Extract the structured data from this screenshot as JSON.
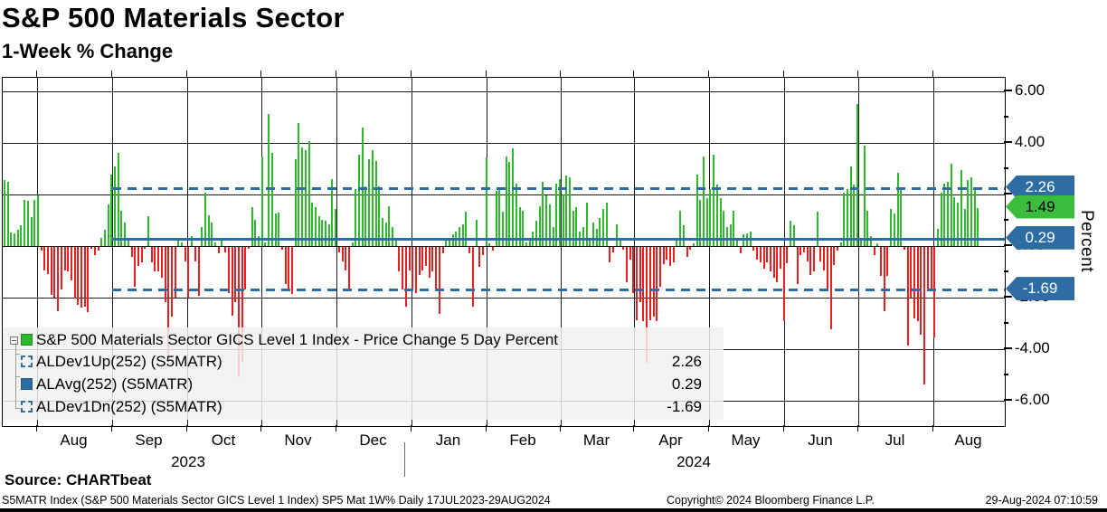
{
  "header": {
    "title": "S&P 500 Materials Sector",
    "subtitle": "1-Week % Change"
  },
  "legend": {
    "items": [
      {
        "label": "S&P 500 Materials Sector GICS Level 1 Index - Price Change 5 Day Percent",
        "swatch": "green-filled",
        "value": ""
      },
      {
        "label": "ALDev1Up(252) (S5MATR)",
        "swatch": "blue-dashed",
        "value": "2.26"
      },
      {
        "label": "ALAvg(252) (S5MATR)",
        "swatch": "blue-filled",
        "value": "0.29"
      },
      {
        "label": "ALDev1Dn(252) (S5MATR)",
        "swatch": "blue-dashed",
        "value": "-1.69"
      }
    ]
  },
  "tags": [
    {
      "value": "2.26",
      "style": "blue"
    },
    {
      "value": "1.49",
      "style": "green"
    },
    {
      "value": "0.29",
      "style": "blue"
    },
    {
      "value": "-1.69",
      "style": "blue"
    }
  ],
  "footer": {
    "source": "Source: CHARTbeat",
    "note_left": "S5MATR Index (S&P 500 Materials Sector GICS Level 1 Index) SP5 Mat 1W%  Daily 17JUL2023-29AUG2024",
    "note_center": "Copyright© 2024 Bloomberg Finance L.P.",
    "note_right": "29-Aug-2024 07:10:59"
  },
  "colors": {
    "up": "#2eb82e",
    "down": "#e62020",
    "blue_line": "#2e6da4",
    "tag_green": "#3cbc3c",
    "tag_blue": "#2e6da4"
  },
  "chart_data": {
    "type": "bar",
    "title": "S&P 500 Materials Sector",
    "subtitle": "1-Week % Change",
    "ylabel": "Percent",
    "ylim": [
      -7,
      6.53
    ],
    "yticks": [
      6,
      4,
      2,
      0,
      -2,
      -4,
      -6
    ],
    "ytick_labels": [
      "6.00",
      "4.00",
      "2.00",
      "0.00",
      "-2.00",
      "-4.00",
      "-6.00"
    ],
    "grid": true,
    "frequency": "daily rolling 5-day % change",
    "date_range": "17JUL2023-29AUG2024",
    "x_axis": {
      "months": [
        "Aug",
        "Sep",
        "Oct",
        "Nov",
        "Dec",
        "Jan",
        "Feb",
        "Mar",
        "Apr",
        "May",
        "Jun",
        "Jul",
        "Aug"
      ],
      "years": [
        "2023",
        "2024"
      ]
    },
    "reference_lines": {
      "ALDev1Up": 2.26,
      "ALAvg": 0.29,
      "ALDev1Dn": -1.69
    },
    "last_value": 1.49,
    "values": [
      2.57,
      2.49,
      0.54,
      0.5,
      0.62,
      0.79,
      1.79,
      1.75,
      1.11,
      1.79,
      1.96,
      -0.14,
      -0.9,
      -1.05,
      -1.87,
      -1.95,
      -2.48,
      -1.66,
      -0.92,
      -0.96,
      -1.31,
      -2.0,
      -2.25,
      -2.36,
      -2.3,
      -2.54,
      -0.08,
      -0.32,
      -0.14,
      0.3,
      0.62,
      1.6,
      2.78,
      3.08,
      3.6,
      1.38,
      0.91,
      0.21,
      -0.37,
      -1.54,
      -0.73,
      -0.58,
      -0.08,
      1.15,
      -0.61,
      -0.96,
      -0.94,
      -1.19,
      -2.13,
      -4.35,
      -2.71,
      -1.95,
      0.21,
      0.15,
      -0.55,
      -1.95,
      0.39,
      -0.55,
      -1.89,
      0.74,
      2.08,
      1.2,
      0.91,
      0.15,
      -0.26,
      0.21,
      -0.2,
      -1.78,
      -2.65,
      -2.13,
      -5.05,
      -4.45,
      -1.66,
      -0.08,
      1.5,
      1.03,
      0.39,
      3.48,
      0.15,
      5.12,
      3.6,
      1.26,
      1.3,
      -0.1,
      -1.43,
      -1.66,
      -1.84,
      3.37,
      4.77,
      3.84,
      3.72,
      4.07,
      1.67,
      1.5,
      1.15,
      1.03,
      0.97,
      0.85,
      2.6,
      1.44,
      -0.2,
      -0.55,
      -0.9,
      -1.66,
      0.15,
      2.2,
      3.54,
      4.6,
      2.3,
      3.37,
      3.72,
      3.3,
      2.3,
      1.09,
      0.91,
      1.55,
      0.74,
      0.33,
      -0.96,
      -1.66,
      -2.3,
      -0.9,
      -1.7,
      -1.78,
      -1.08,
      -0.9,
      -0.73,
      -1.19,
      -0.96,
      -1.66,
      -2.6,
      -0.26,
      0.27,
      0.33,
      0.44,
      0.56,
      0.74,
      0.85,
      1.32,
      -0.26,
      -2.3,
      1.03,
      -0.78,
      -0.3,
      3.43,
      0.1,
      -0.14,
      2.14,
      2.26,
      1.32,
      3.49,
      3.25,
      3.78,
      2.43,
      1.5,
      1.38,
      0.15,
      0.2,
      0.55,
      1.0,
      1.55,
      2.5,
      1.96,
      1.6,
      0.75,
      2.43,
      2.6,
      2.0,
      2.73,
      2.66,
      1.38,
      1.5,
      0.55,
      0.75,
      1.67,
      0.2,
      0.9,
      0.68,
      1.1,
      1.45,
      1.67,
      -0.6,
      -0.2,
      0.85,
      0.2,
      -0.1,
      -1.37,
      -0.5,
      -1.78,
      -2.83,
      -2.13,
      -2.89,
      -4.5,
      -2.83,
      -2.71,
      -2.89,
      -1.54,
      -0.67,
      -0.49,
      -0.73,
      -0.6,
      0.33,
      1.38,
      0.8,
      -0.37,
      -0.1,
      0.1,
      2.78,
      1.79,
      3.48,
      1.85,
      2.2,
      3.54,
      2.37,
      1.85,
      1.38,
      0.74,
      0.85,
      1.38,
      0.21,
      -0.26,
      0.44,
      0.5,
      0.56,
      -0.14,
      -0.49,
      -0.61,
      -0.84,
      -0.6,
      -0.96,
      -1.19,
      -1.37,
      -0.84,
      -2.89,
      -0.64,
      0.97,
      0.8,
      -1.43,
      -0.3,
      -0.2,
      -0.55,
      -1.08,
      -0.95,
      1.32,
      -0.55,
      -0.9,
      -1.66,
      -3.18,
      -0.7,
      -0.14,
      0.15,
      2.08,
      2.2,
      3.08,
      2.37,
      5.5,
      0.2,
      3.89,
      1.38,
      0.39,
      -0.32,
      0.1,
      -1.13,
      -2.48,
      -1.13,
      1.44,
      1.26,
      2.84,
      2.26,
      -0.1,
      -3.82,
      -1.95,
      -2.77,
      -2.89,
      -3.42,
      -5.34,
      -1.72,
      -1.7,
      -3.5,
      0.68,
      2.08,
      2.43,
      2.49,
      3.19,
      1.9,
      1.67,
      2.96,
      1.44,
      2.55,
      2.66,
      2.26,
      1.49
    ]
  }
}
